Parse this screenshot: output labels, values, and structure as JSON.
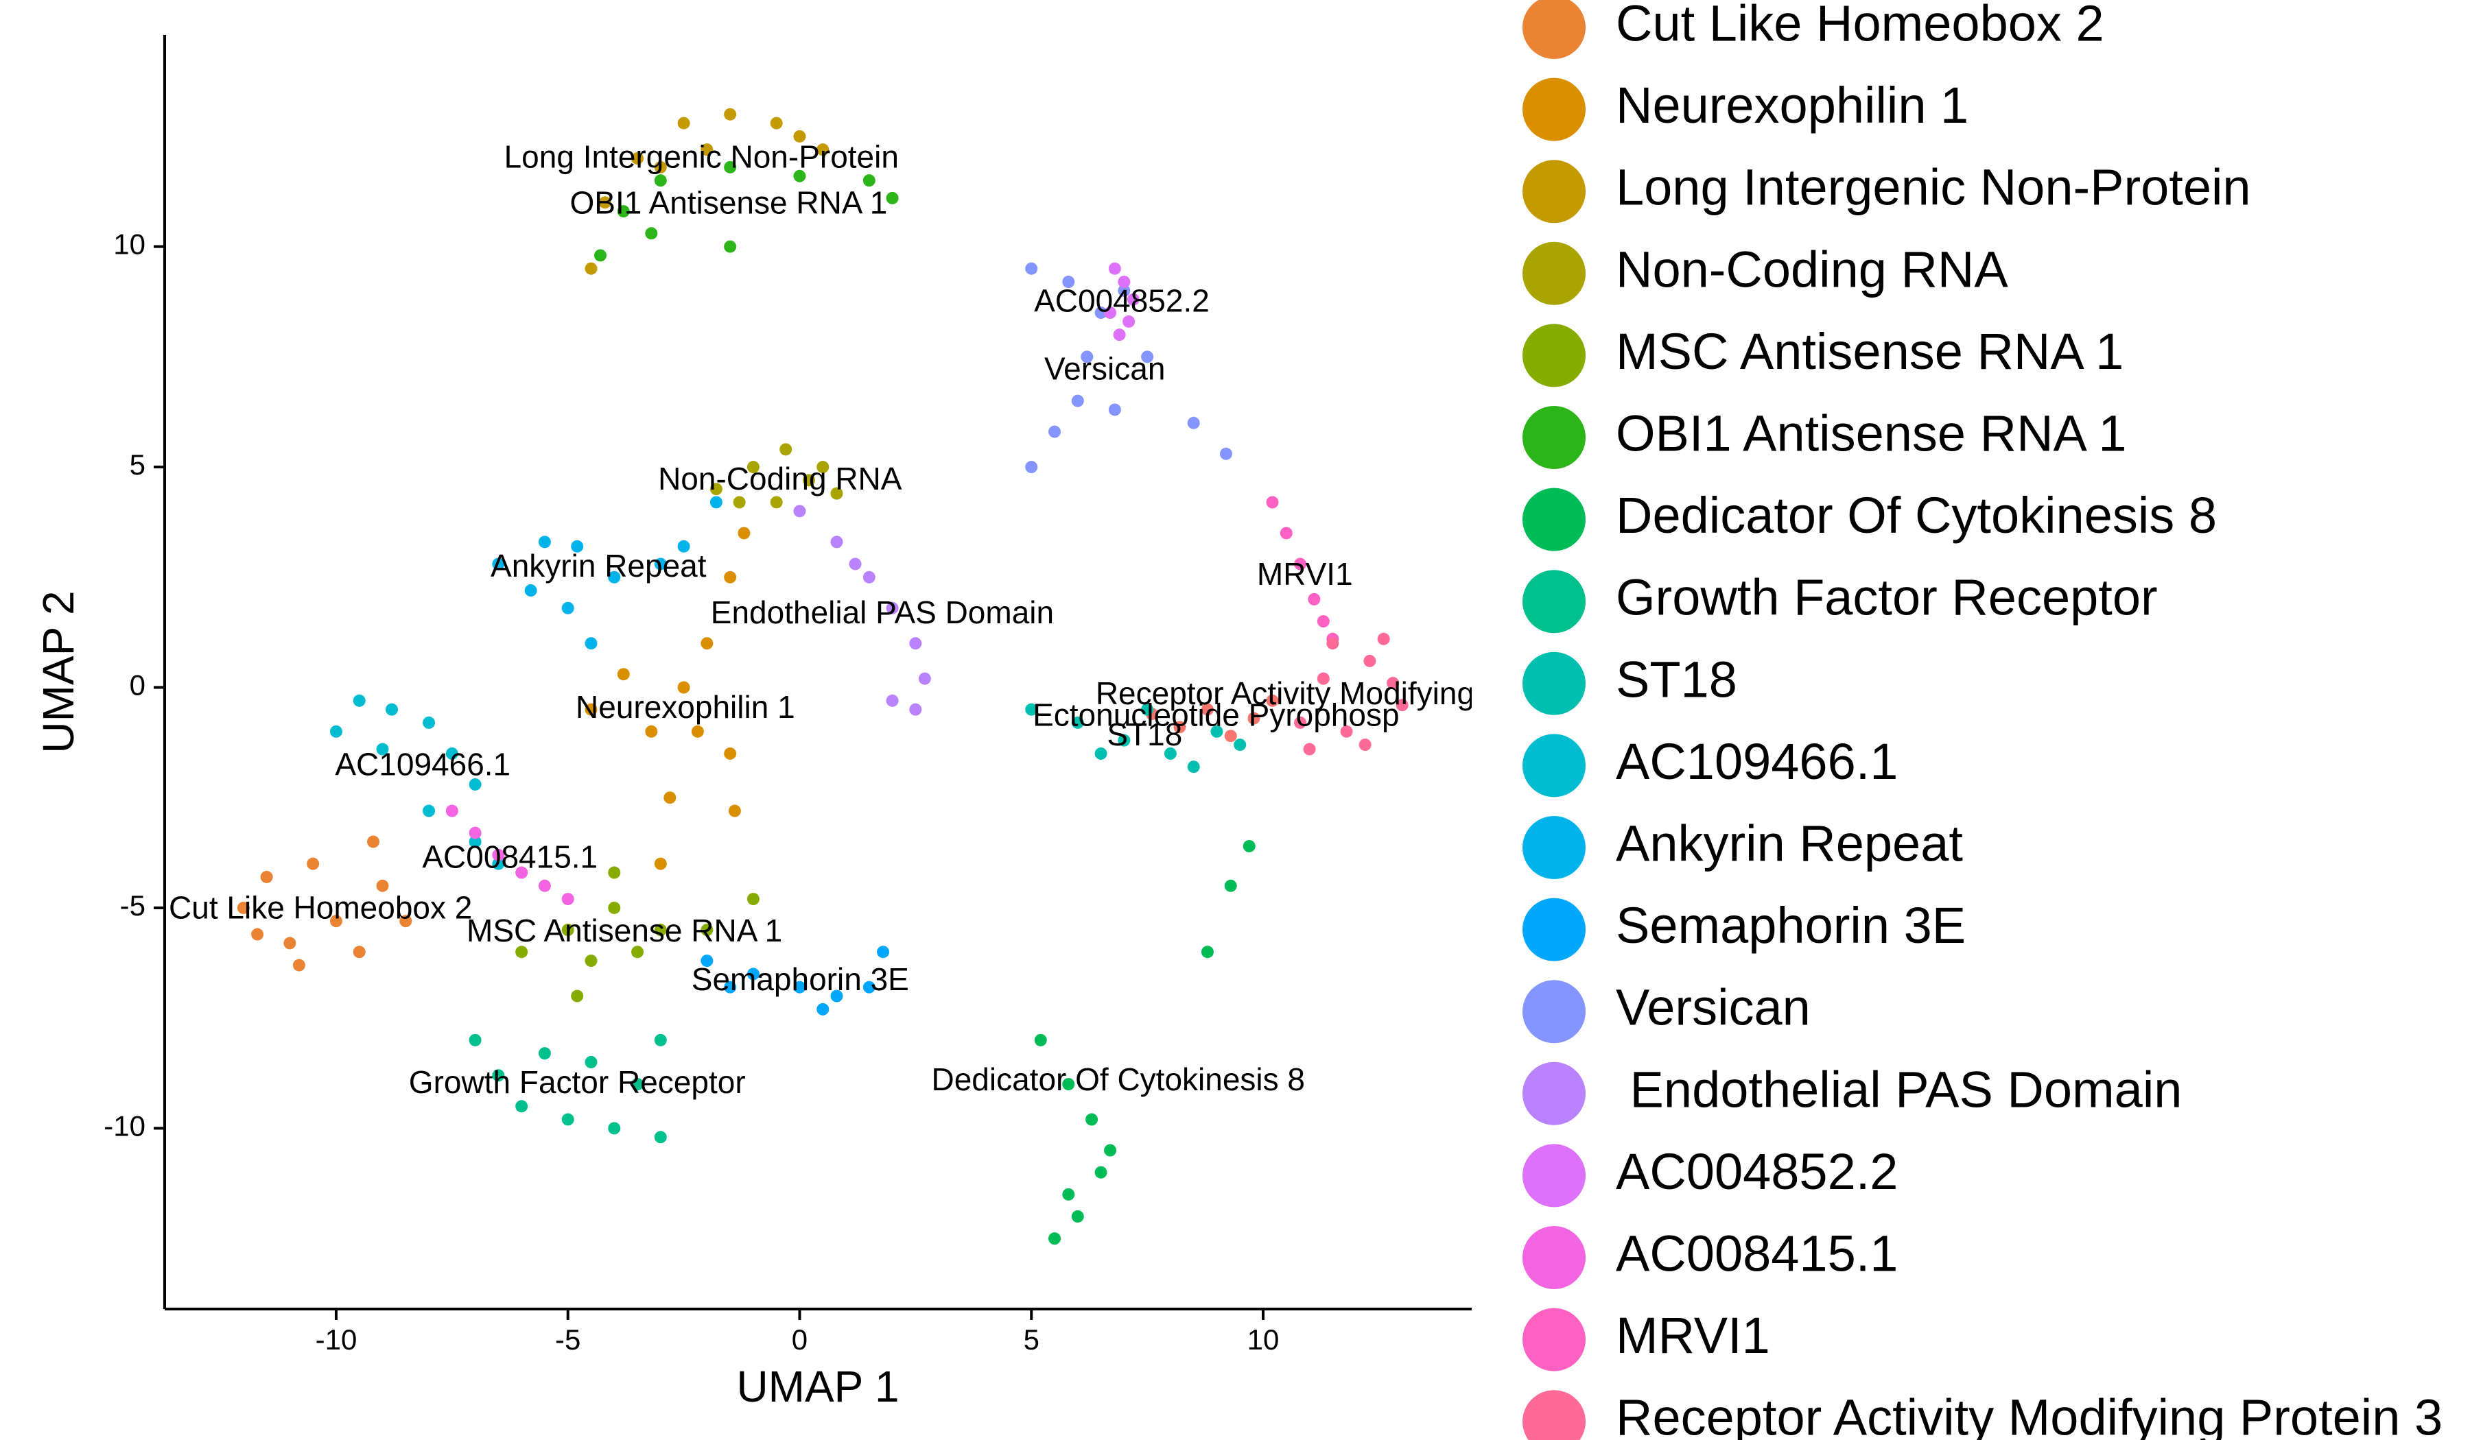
{
  "chart_data": {
    "type": "scatter",
    "xlabel": "UMAP 1",
    "ylabel": "UMAP 2",
    "xlim": [
      -13.7,
      14.5
    ],
    "ylim": [
      -14.1,
      14.8
    ],
    "xticks": [
      -10,
      -5,
      0,
      5,
      10
    ],
    "yticks": [
      -10,
      -5,
      0,
      5,
      10
    ],
    "series": [
      {
        "name": "Ectonucleotide Pyrophosp",
        "color": "#F8766D",
        "x": [
          7.6,
          8.2,
          8.8,
          9.3,
          9.8,
          10.2
        ],
        "y": [
          -0.6,
          -0.9,
          -0.5,
          -1.1,
          -0.7,
          -0.3
        ]
      },
      {
        "name": "Cut Like Homeobox 2",
        "color": "#EB8335",
        "x": [
          -12,
          -11.5,
          -11,
          -10.5,
          -10,
          -9.5,
          -9,
          -8.5,
          -10.8,
          -11.7,
          -9.2
        ],
        "y": [
          -5,
          -4.3,
          -5.8,
          -4,
          -5.3,
          -6,
          -4.5,
          -5.3,
          -6.3,
          -5.6,
          -3.5
        ]
      },
      {
        "name": "Neurexophilin 1",
        "color": "#DA8F00",
        "x": [
          -4.5,
          -3.8,
          -3.2,
          -2.5,
          -2,
          -1.5,
          -1.2,
          -1.5,
          -1.4,
          -2.8,
          -3,
          -2.2
        ],
        "y": [
          -0.5,
          0.3,
          -1,
          0,
          1,
          2.5,
          3.5,
          -1.5,
          -2.8,
          -2.5,
          -4,
          -1
        ]
      },
      {
        "name": "Long Intergenic Non-Protein",
        "color": "#C49A00",
        "x": [
          -4.5,
          -4.2,
          -3.5,
          -2.5,
          -1.5,
          -0.5,
          0.5,
          -3,
          -2,
          0
        ],
        "y": [
          9.5,
          11,
          12,
          12.8,
          13,
          12.8,
          12.2,
          11.8,
          12.2,
          12.5
        ]
      },
      {
        "name": "Non-Coding RNA",
        "color": "#A9A400",
        "x": [
          -1.8,
          -1,
          -0.3,
          0.5,
          0.8,
          -0.5,
          0.2,
          -1.3
        ],
        "y": [
          4.5,
          5,
          5.4,
          5,
          4.4,
          4.2,
          4.7,
          4.2
        ]
      },
      {
        "name": "MSC Antisense RNA 1",
        "color": "#86AC00",
        "x": [
          -6,
          -5,
          -4.5,
          -4,
          -3.5,
          -3,
          -4,
          -2,
          -1,
          -4.8
        ],
        "y": [
          -6,
          -5.5,
          -6.2,
          -5,
          -6,
          -5.5,
          -4.2,
          -5.5,
          -4.8,
          -7
        ]
      },
      {
        "name": "OBI1 Antisense RNA 1",
        "color": "#2CB519",
        "x": [
          -4.3,
          -3.8,
          -3,
          -1.5,
          0,
          1.5,
          2,
          -1.5,
          -3.2
        ],
        "y": [
          9.8,
          10.8,
          11.5,
          11.8,
          11.6,
          11.5,
          11.1,
          10,
          10.3
        ]
      },
      {
        "name": "Dedicator Of Cytokinesis 8",
        "color": "#00BC56",
        "x": [
          5.2,
          5.8,
          6.3,
          6.5,
          6,
          5.5,
          6.7,
          5.8,
          8.8,
          9.3,
          9.7
        ],
        "y": [
          -8,
          -9,
          -9.8,
          -11,
          -12,
          -12.5,
          -10.5,
          -11.5,
          -6,
          -4.5,
          -3.6
        ]
      },
      {
        "name": "Growth Factor Receptor",
        "color": "#00C08D",
        "x": [
          -7,
          -6.5,
          -6,
          -5,
          -4,
          -3,
          -4.5,
          -3.5,
          -5.5,
          -3
        ],
        "y": [
          -8,
          -8.8,
          -9.5,
          -9.8,
          -10,
          -10.2,
          -8.5,
          -9,
          -8.3,
          -8
        ]
      },
      {
        "name": "ST18",
        "color": "#00BFAE",
        "x": [
          5,
          6,
          7,
          8,
          9,
          7.5,
          6.5,
          8.5,
          9.5
        ],
        "y": [
          -0.5,
          -0.8,
          -1.2,
          -1.5,
          -1,
          -0.5,
          -1.5,
          -1.8,
          -1.3
        ]
      },
      {
        "name": "AC109466.1",
        "color": "#00BCD0",
        "x": [
          -10,
          -9.5,
          -8.8,
          -8,
          -7.5,
          -7,
          -8,
          -7,
          -9,
          -6.5
        ],
        "y": [
          -1,
          -0.3,
          -0.5,
          -0.8,
          -1.5,
          -2.2,
          -2.8,
          -3.5,
          -1.4,
          -4
        ]
      },
      {
        "name": "Ankyrin Repeat",
        "color": "#00B4EB",
        "x": [
          -6.5,
          -5.5,
          -4.8,
          -4,
          -3,
          -2.5,
          -5,
          -4.5,
          -5.8,
          -1.8
        ],
        "y": [
          2.8,
          3.3,
          3.2,
          2.5,
          2.8,
          3.2,
          1.8,
          1,
          2.2,
          4.2
        ]
      },
      {
        "name": "Semaphorin 3E",
        "color": "#00A8FD",
        "x": [
          -2,
          -1,
          0,
          0.8,
          1.5,
          1.8,
          0.5,
          -1.5
        ],
        "y": [
          -6.2,
          -6.5,
          -6.8,
          -7,
          -6.8,
          -6,
          -7.3,
          -6.8
        ]
      },
      {
        "name": "Versican",
        "color": "#8495FF",
        "x": [
          5,
          5.5,
          6,
          6.2,
          6.5,
          7,
          7.5,
          8.5,
          9.2,
          5,
          5.8,
          6.8
        ],
        "y": [
          5,
          5.8,
          6.5,
          7.5,
          8.5,
          9,
          7.5,
          6,
          5.3,
          9.5,
          9.2,
          6.3
        ]
      },
      {
        "name": " Endothelial PAS Domain",
        "color": "#B983FF",
        "x": [
          0,
          0.8,
          1.5,
          2,
          2.5,
          2.7,
          2.5,
          2,
          1.2
        ],
        "y": [
          4,
          3.3,
          2.5,
          1.8,
          1,
          0.2,
          -0.5,
          -0.3,
          2.8
        ]
      },
      {
        "name": "AC004852.2",
        "color": "#DD71FA",
        "x": [
          6.7,
          7,
          7.2,
          6.9,
          6.8,
          7.1
        ],
        "y": [
          8.5,
          9.2,
          8.8,
          8,
          9.5,
          8.3
        ]
      },
      {
        "name": "AC008415.1",
        "color": "#F364E2",
        "x": [
          -7.5,
          -7,
          -6.5,
          -6,
          -5.5,
          -5
        ],
        "y": [
          -2.8,
          -3.3,
          -3.8,
          -4.2,
          -4.5,
          -4.8
        ]
      },
      {
        "name": "MRVI1",
        "color": "#FF61C3",
        "x": [
          10.2,
          10.5,
          10.8,
          11.1,
          11.3,
          11.5
        ],
        "y": [
          4.2,
          3.5,
          2.8,
          2,
          1.5,
          1.1
        ]
      },
      {
        "name": "Receptor Activity Modifying Protein 3",
        "color": "#FF6A98",
        "x": [
          10.8,
          11.3,
          11.8,
          12.3,
          12.8,
          13,
          11.5,
          12.2,
          11,
          12.6
        ],
        "y": [
          -0.8,
          0.2,
          -1,
          0.6,
          0.1,
          -0.4,
          1,
          -1.3,
          -1.4,
          1.1
        ]
      }
    ]
  }
}
